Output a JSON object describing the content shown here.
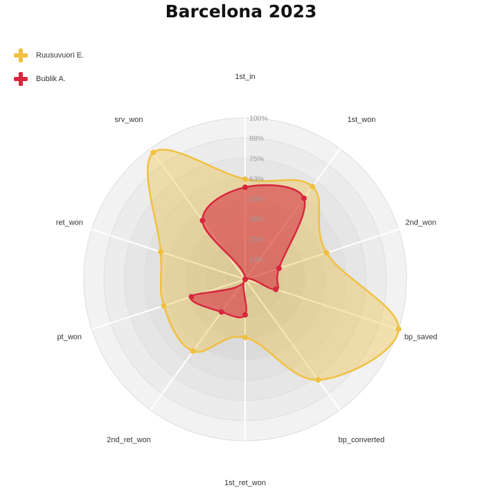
{
  "chart_data": {
    "type": "radar",
    "title": "Barcelona 2023",
    "axes": [
      "1st_in",
      "1st_won",
      "2nd_won",
      "bp_saved",
      "bp_converted",
      "1st_ret_won",
      "2nd_ret_won",
      "pt_won",
      "ret_won",
      "srv_won"
    ],
    "rlim": [
      0,
      100
    ],
    "ticks": [
      "13%",
      "25%",
      "38%",
      "50%",
      "63%",
      "75%",
      "88%",
      "100%"
    ],
    "legend_position": "top-left",
    "series": [
      {
        "name": "Ruusuvuori E.",
        "color": "#f0c040",
        "values": [
          62,
          71,
          53,
          100,
          77,
          36,
          55,
          53,
          55,
          97
        ]
      },
      {
        "name": "Bublik A.",
        "color": "#d7263d",
        "values": [
          57,
          62,
          22,
          20,
          0,
          22,
          25,
          35,
          0,
          45
        ]
      }
    ]
  }
}
